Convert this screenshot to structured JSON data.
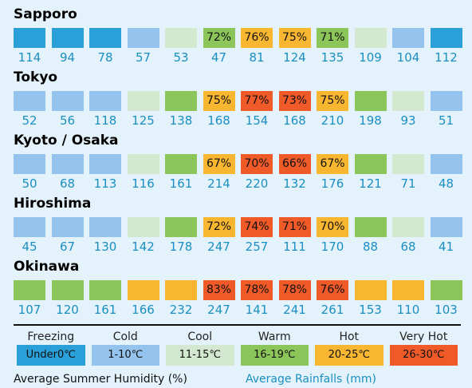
{
  "legend": [
    {
      "name": "Freezing",
      "range": "Under0℃",
      "color": "#2a9fd8"
    },
    {
      "name": "Cold",
      "range": "1-10℃",
      "color": "#94c4ee"
    },
    {
      "name": "Cool",
      "range": "11-15℃",
      "color": "#d3e9cf"
    },
    {
      "name": "Warm",
      "range": "16-19℃",
      "color": "#8cc65a"
    },
    {
      "name": "Hot",
      "range": "20-25℃",
      "color": "#f9b630"
    },
    {
      "name": "Very Hot",
      "range": "26-30℃",
      "color": "#f05a28"
    }
  ],
  "cities": [
    {
      "name": "Sapporo",
      "cells": [
        {
          "category": "Freezing",
          "humidity": null,
          "rainfall": 114
        },
        {
          "category": "Freezing",
          "humidity": null,
          "rainfall": 94
        },
        {
          "category": "Freezing",
          "humidity": null,
          "rainfall": 78
        },
        {
          "category": "Cold",
          "humidity": null,
          "rainfall": 57
        },
        {
          "category": "Cool",
          "humidity": null,
          "rainfall": 53
        },
        {
          "category": "Warm",
          "humidity": "72%",
          "rainfall": 47
        },
        {
          "category": "Hot",
          "humidity": "76%",
          "rainfall": 81
        },
        {
          "category": "Hot",
          "humidity": "75%",
          "rainfall": 124
        },
        {
          "category": "Warm",
          "humidity": "71%",
          "rainfall": 135
        },
        {
          "category": "Cool",
          "humidity": null,
          "rainfall": 109
        },
        {
          "category": "Cold",
          "humidity": null,
          "rainfall": 104
        },
        {
          "category": "Freezing",
          "humidity": null,
          "rainfall": 112
        }
      ]
    },
    {
      "name": "Tokyo",
      "cells": [
        {
          "category": "Cold",
          "humidity": null,
          "rainfall": 52
        },
        {
          "category": "Cold",
          "humidity": null,
          "rainfall": 56
        },
        {
          "category": "Cold",
          "humidity": null,
          "rainfall": 118
        },
        {
          "category": "Cool",
          "humidity": null,
          "rainfall": 125
        },
        {
          "category": "Warm",
          "humidity": null,
          "rainfall": 138
        },
        {
          "category": "Hot",
          "humidity": "75%",
          "rainfall": 168
        },
        {
          "category": "Very Hot",
          "humidity": "77%",
          "rainfall": 154
        },
        {
          "category": "Very Hot",
          "humidity": "73%",
          "rainfall": 168
        },
        {
          "category": "Hot",
          "humidity": "75%",
          "rainfall": 210
        },
        {
          "category": "Warm",
          "humidity": null,
          "rainfall": 198
        },
        {
          "category": "Cool",
          "humidity": null,
          "rainfall": 93
        },
        {
          "category": "Cold",
          "humidity": null,
          "rainfall": 51
        }
      ]
    },
    {
      "name": "Kyoto / Osaka",
      "cells": [
        {
          "category": "Cold",
          "humidity": null,
          "rainfall": 50
        },
        {
          "category": "Cold",
          "humidity": null,
          "rainfall": 68
        },
        {
          "category": "Cold",
          "humidity": null,
          "rainfall": 113
        },
        {
          "category": "Cool",
          "humidity": null,
          "rainfall": 116
        },
        {
          "category": "Warm",
          "humidity": null,
          "rainfall": 161
        },
        {
          "category": "Hot",
          "humidity": "67%",
          "rainfall": 214
        },
        {
          "category": "Very Hot",
          "humidity": "70%",
          "rainfall": 220
        },
        {
          "category": "Very Hot",
          "humidity": "66%",
          "rainfall": 132
        },
        {
          "category": "Hot",
          "humidity": "67%",
          "rainfall": 176
        },
        {
          "category": "Warm",
          "humidity": null,
          "rainfall": 121
        },
        {
          "category": "Cool",
          "humidity": null,
          "rainfall": 71
        },
        {
          "category": "Cold",
          "humidity": null,
          "rainfall": 48
        }
      ]
    },
    {
      "name": "Hiroshima",
      "cells": [
        {
          "category": "Cold",
          "humidity": null,
          "rainfall": 45
        },
        {
          "category": "Cold",
          "humidity": null,
          "rainfall": 67
        },
        {
          "category": "Cold",
          "humidity": null,
          "rainfall": 130
        },
        {
          "category": "Cool",
          "humidity": null,
          "rainfall": 142
        },
        {
          "category": "Warm",
          "humidity": null,
          "rainfall": 178
        },
        {
          "category": "Hot",
          "humidity": "72%",
          "rainfall": 247
        },
        {
          "category": "Very Hot",
          "humidity": "74%",
          "rainfall": 257
        },
        {
          "category": "Very Hot",
          "humidity": "71%",
          "rainfall": 111
        },
        {
          "category": "Hot",
          "humidity": "70%",
          "rainfall": 170
        },
        {
          "category": "Warm",
          "humidity": null,
          "rainfall": 88
        },
        {
          "category": "Cool",
          "humidity": null,
          "rainfall": 68
        },
        {
          "category": "Cold",
          "humidity": null,
          "rainfall": 41
        }
      ]
    },
    {
      "name": "Okinawa",
      "cells": [
        {
          "category": "Warm",
          "humidity": null,
          "rainfall": 107
        },
        {
          "category": "Warm",
          "humidity": null,
          "rainfall": 120
        },
        {
          "category": "Warm",
          "humidity": null,
          "rainfall": 161
        },
        {
          "category": "Hot",
          "humidity": null,
          "rainfall": 166
        },
        {
          "category": "Hot",
          "humidity": null,
          "rainfall": 232
        },
        {
          "category": "Very Hot",
          "humidity": "83%",
          "rainfall": 247
        },
        {
          "category": "Very Hot",
          "humidity": "78%",
          "rainfall": 141
        },
        {
          "category": "Very Hot",
          "humidity": "78%",
          "rainfall": 241
        },
        {
          "category": "Very Hot",
          "humidity": "76%",
          "rainfall": 261
        },
        {
          "category": "Hot",
          "humidity": null,
          "rainfall": 153
        },
        {
          "category": "Hot",
          "humidity": null,
          "rainfall": 110
        },
        {
          "category": "Warm",
          "humidity": null,
          "rainfall": 103
        }
      ]
    }
  ],
  "footer": {
    "humidity_label": "Average Summer Humidity (%)",
    "rainfall_label": "Average Rainfalls (mm)"
  }
}
